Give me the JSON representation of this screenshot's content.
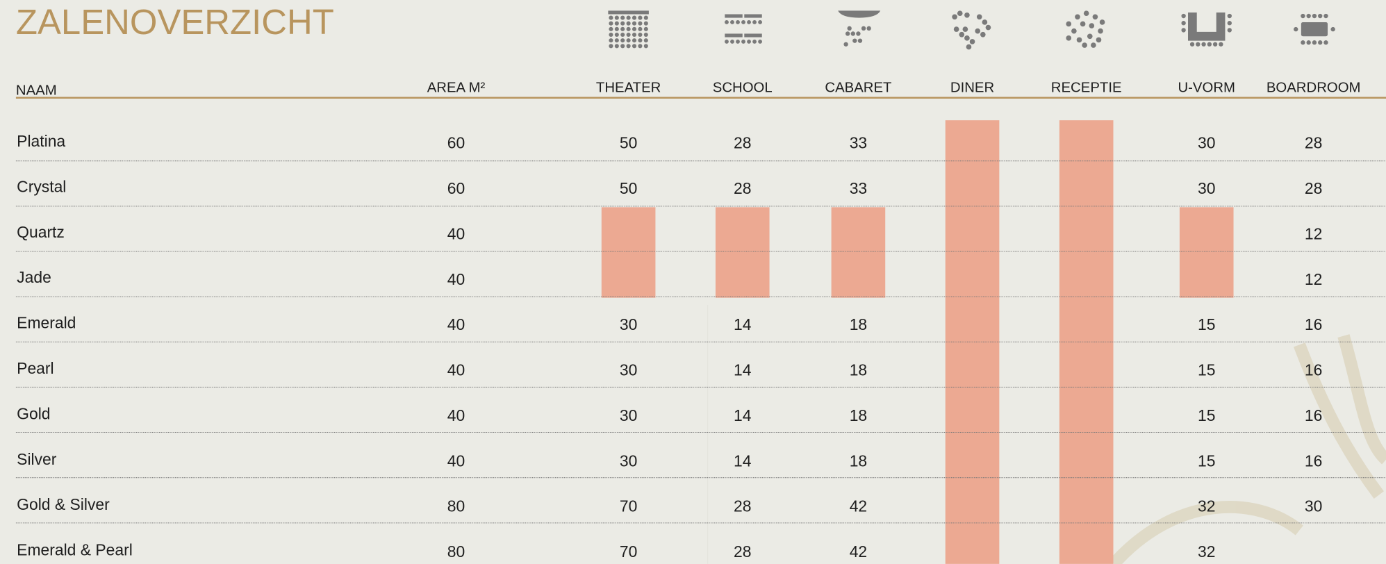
{
  "title": "ZALENOVERZICHT",
  "table": {
    "header": [
      "NAAM",
      "AREA M²",
      "THEATER",
      "SCHOOL",
      "CABARET",
      "DINER",
      "RECEPTIE",
      "U-VORM",
      "BOARDROOM"
    ],
    "rows": [
      [
        "Platina",
        60,
        50,
        28,
        33,
        null,
        null,
        30,
        28
      ],
      [
        "Crystal",
        60,
        50,
        28,
        33,
        null,
        null,
        30,
        28
      ],
      [
        "Quartz",
        40,
        null,
        null,
        null,
        null,
        null,
        null,
        12
      ],
      [
        "Jade",
        40,
        null,
        null,
        null,
        null,
        null,
        null,
        12
      ],
      [
        "Emerald",
        40,
        30,
        14,
        18,
        null,
        null,
        15,
        16
      ],
      [
        "Pearl",
        40,
        30,
        14,
        18,
        null,
        null,
        15,
        16
      ],
      [
        "Gold",
        40,
        30,
        14,
        18,
        null,
        null,
        15,
        16
      ],
      [
        "Silver",
        40,
        30,
        14,
        18,
        null,
        null,
        15,
        16
      ],
      [
        "Gold & Silver",
        80,
        70,
        28,
        42,
        null,
        null,
        32,
        30
      ],
      [
        "Emerald & Pearl",
        80,
        70,
        28,
        42,
        null,
        null,
        32,
        null
      ]
    ]
  }
}
